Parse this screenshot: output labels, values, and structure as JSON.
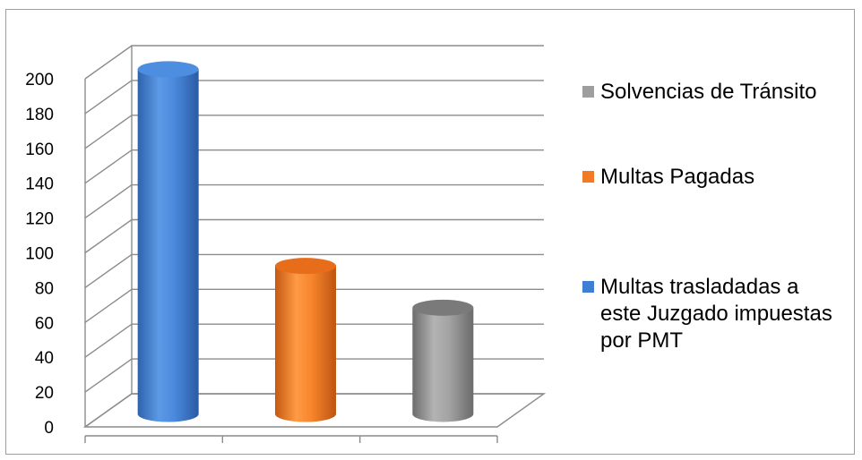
{
  "chart_data": {
    "type": "bar",
    "style": "3d-cylinder",
    "categories": [
      "",
      "",
      ""
    ],
    "series": [
      {
        "name": "Multas trasladadas a este Juzgado impuestas por PMT",
        "color": "#3f7fd3",
        "values": [
          198,
          null,
          null
        ]
      },
      {
        "name": "Multas Pagadas",
        "color": "#f27a24",
        "values": [
          null,
          85,
          null
        ]
      },
      {
        "name": "Solvencias de Tránsito",
        "color": "#8c8c8c",
        "values": [
          null,
          null,
          61
        ]
      }
    ],
    "yticks": [
      "0",
      "20",
      "40",
      "60",
      "80",
      "100",
      "120",
      "140",
      "160",
      "180",
      "200"
    ],
    "ylim": [
      0,
      200
    ],
    "grid": true,
    "legend_position": "right",
    "legend_order": [
      {
        "label": "Solvencias de Tránsito",
        "color": "#9e9e9e"
      },
      {
        "label": "Multas Pagadas",
        "color": "#f27a24"
      },
      {
        "label": "Multas trasladadas a este Juzgado impuestas por PMT",
        "color": "#3f7fd3"
      }
    ]
  }
}
